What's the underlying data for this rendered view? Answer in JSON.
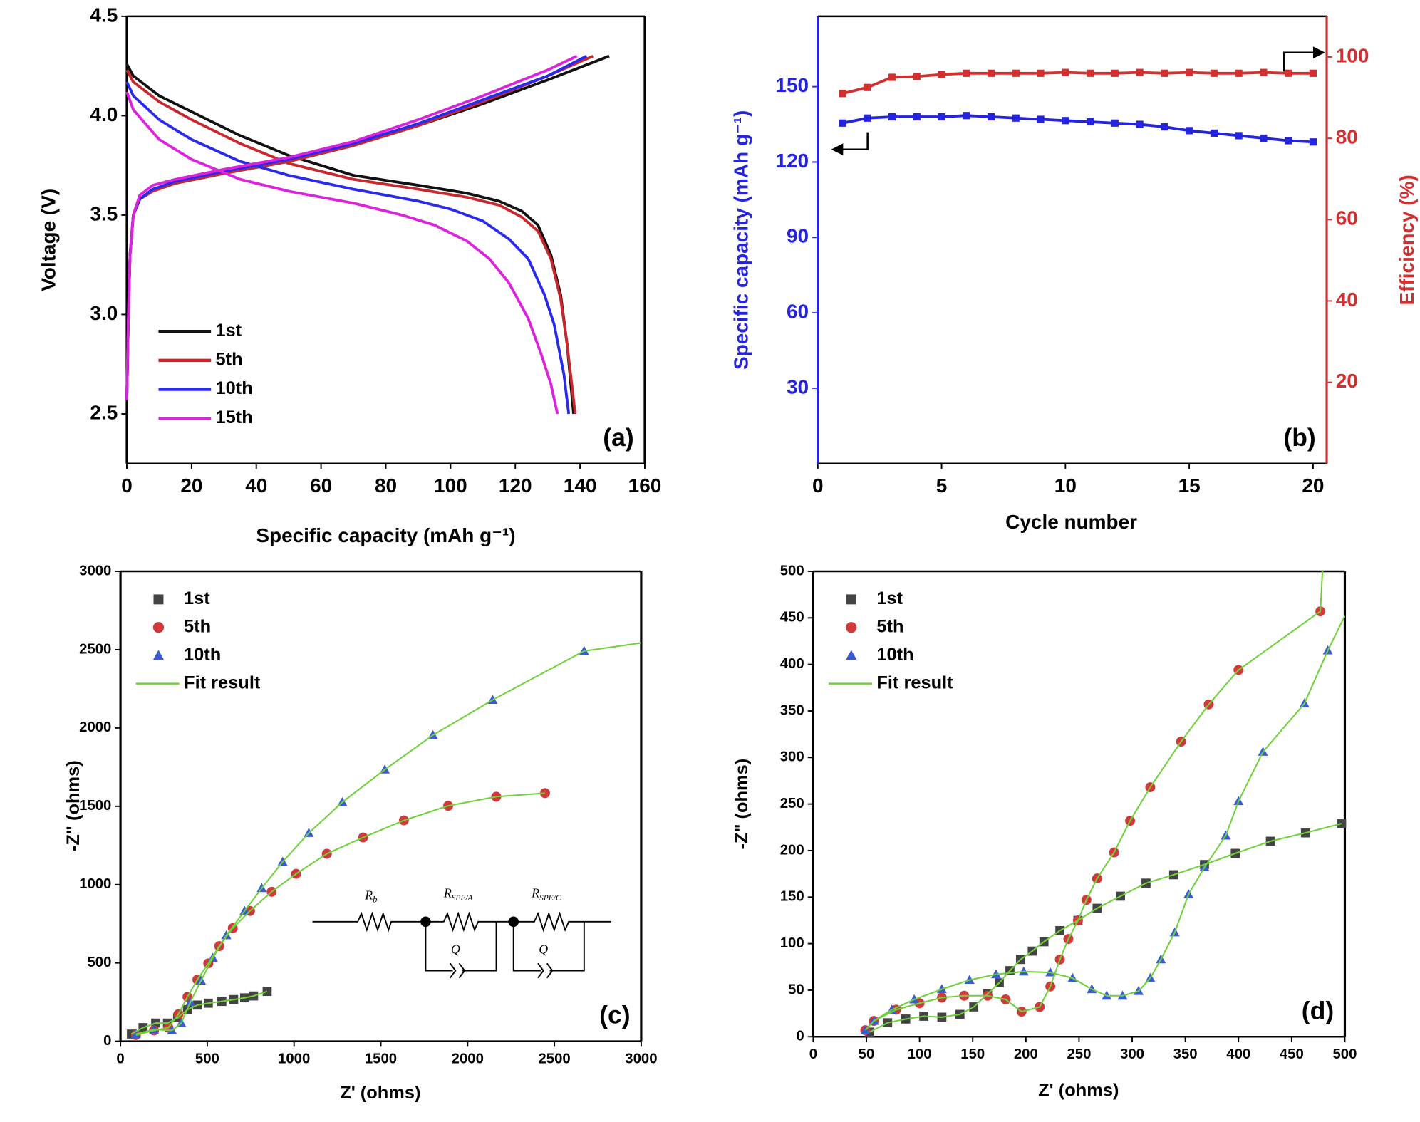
{
  "chart_data": [
    {
      "type": "line",
      "panel_label": "(a)",
      "xlabel": "Specific capacity (mAh g⁻¹)",
      "ylabel": "Voltage (V)",
      "xlim": [
        0,
        160
      ],
      "ylim": [
        2.25,
        4.5
      ],
      "xticks": [
        0,
        20,
        40,
        60,
        80,
        100,
        120,
        140,
        160
      ],
      "yticks": [
        2.5,
        {
          "value": 3,
          "label": "3.0"
        },
        3.5,
        {
          "value": 4,
          "label": "4.0"
        },
        4.5
      ],
      "legend": "lower left",
      "series": [
        {
          "name": "1st",
          "color": "#111111",
          "x": [
            0,
            0.5,
            1,
            2,
            4,
            8,
            15,
            30,
            50,
            70,
            90,
            110,
            130,
            149,
            null,
            0,
            2,
            10,
            20,
            35,
            50,
            70,
            90,
            105,
            115,
            122,
            127,
            131,
            134,
            136,
            138
          ],
          "values": [
            2.57,
            3.0,
            3.3,
            3.5,
            3.58,
            3.63,
            3.66,
            3.71,
            3.77,
            3.85,
            3.95,
            4.06,
            4.18,
            4.3,
            null,
            4.26,
            4.2,
            4.1,
            4.02,
            3.9,
            3.8,
            3.7,
            3.65,
            3.61,
            3.57,
            3.52,
            3.45,
            3.3,
            3.1,
            2.85,
            2.5
          ]
        },
        {
          "name": "5th",
          "color": "#c8272d",
          "x": [
            0,
            0.5,
            1,
            2,
            4,
            8,
            15,
            30,
            50,
            70,
            90,
            110,
            130,
            144,
            null,
            0,
            2,
            10,
            20,
            35,
            50,
            70,
            90,
            105,
            115,
            122,
            127,
            131,
            134,
            136,
            138.5
          ],
          "values": [
            2.57,
            3.0,
            3.3,
            3.5,
            3.58,
            3.62,
            3.66,
            3.71,
            3.77,
            3.85,
            3.95,
            4.07,
            4.2,
            4.3,
            null,
            4.23,
            4.17,
            4.07,
            3.98,
            3.86,
            3.76,
            3.68,
            3.63,
            3.59,
            3.55,
            3.49,
            3.42,
            3.28,
            3.08,
            2.85,
            2.5
          ]
        },
        {
          "name": "10th",
          "color": "#2a2aee",
          "x": [
            0,
            0.5,
            1,
            2,
            4,
            8,
            15,
            30,
            50,
            70,
            90,
            110,
            130,
            142,
            null,
            0,
            2,
            10,
            20,
            35,
            50,
            70,
            90,
            100,
            110,
            118,
            124,
            129,
            132,
            135,
            136.5
          ],
          "values": [
            2.57,
            3.0,
            3.3,
            3.5,
            3.58,
            3.63,
            3.67,
            3.72,
            3.78,
            3.86,
            3.96,
            4.08,
            4.2,
            4.3,
            null,
            4.17,
            4.1,
            3.98,
            3.88,
            3.77,
            3.7,
            3.63,
            3.57,
            3.53,
            3.47,
            3.38,
            3.28,
            3.1,
            2.95,
            2.7,
            2.5
          ]
        },
        {
          "name": "15th",
          "color": "#dd22dd",
          "x": [
            0,
            0.5,
            1,
            2,
            4,
            8,
            15,
            30,
            50,
            70,
            90,
            110,
            130,
            139,
            null,
            0,
            2,
            10,
            20,
            35,
            50,
            70,
            85,
            95,
            105,
            112,
            118,
            124,
            128,
            131,
            133
          ],
          "values": [
            2.57,
            3.0,
            3.3,
            3.5,
            3.6,
            3.65,
            3.68,
            3.73,
            3.79,
            3.87,
            3.98,
            4.1,
            4.23,
            4.3,
            null,
            4.12,
            4.03,
            3.88,
            3.78,
            3.68,
            3.62,
            3.56,
            3.5,
            3.45,
            3.37,
            3.28,
            3.16,
            2.98,
            2.8,
            2.65,
            2.5
          ]
        }
      ]
    },
    {
      "type": "line",
      "markers": "square",
      "panel_label": "(b)",
      "xlabel": "Cycle number",
      "ylabel": "Specific capacity (mAh g⁻¹)",
      "y2label": "Efficiency (%)",
      "x": [
        1,
        2,
        3,
        4,
        5,
        6,
        7,
        8,
        9,
        10,
        11,
        12,
        13,
        14,
        15,
        16,
        17,
        18,
        19,
        20
      ],
      "xlim": [
        0,
        20.55
      ],
      "ylim": [
        0,
        178
      ],
      "y2lim": [
        0,
        110
      ],
      "xticks": [
        0,
        5,
        10,
        15,
        20
      ],
      "yticks": [
        30,
        60,
        90,
        120,
        150
      ],
      "y2ticks": [
        20,
        40,
        60,
        80,
        100
      ],
      "series": [
        {
          "name": "Specific capacity",
          "color": "#2424e0",
          "axis": "y",
          "values": [
            135.5,
            137.5,
            138,
            138,
            138,
            138.5,
            138,
            137.5,
            137,
            136.5,
            136,
            135.5,
            135,
            134,
            132.5,
            131.5,
            130.5,
            129.5,
            128.5,
            128
          ]
        },
        {
          "name": "Efficiency",
          "color": "#d32f2f",
          "axis": "y2",
          "values": [
            91,
            92.5,
            95,
            95.2,
            95.7,
            96,
            96,
            96,
            96,
            96.2,
            96,
            96,
            96.2,
            96,
            96.2,
            96,
            96,
            96.2,
            96,
            96
          ]
        }
      ]
    },
    {
      "type": "scatter",
      "panel_label": "(c)",
      "xlabel": "Z' (ohms)",
      "ylabel": "-Z\" (ohms)",
      "xlim": [
        0,
        3000
      ],
      "ylim": [
        0,
        3000
      ],
      "xticks": [
        0,
        500,
        1000,
        1500,
        2000,
        2500,
        3000
      ],
      "yticks": [
        0,
        500,
        1000,
        1500,
        2000,
        2500,
        3000
      ],
      "legend": "upper left",
      "circuit_labels": [
        {
          "main": "R",
          "sub": "b"
        },
        {
          "main": "R",
          "sub": "SPE/A"
        },
        {
          "main": "R",
          "sub": "SPE/C"
        }
      ],
      "circuit_q": [
        "Q",
        "Q"
      ],
      "series": [
        {
          "name": "1st",
          "color": "#444444",
          "marker": "square",
          "x": [
            63,
            130,
            203,
            271,
            329,
            386,
            443,
            506,
            584,
            652,
            715,
            767,
            845
          ],
          "values": [
            46,
            87,
            116,
            116,
            150,
            202,
            231,
            243,
            254,
            266,
            277,
            289,
            318
          ]
        },
        {
          "name": "5th",
          "color": "#d03a3a",
          "marker": "circle",
          "x": [
            89,
            193,
            276,
            334,
            386,
            443,
            506,
            569,
            647,
            746,
            871,
            1012,
            1189,
            1398,
            1633,
            1888,
            2165,
            2446
          ],
          "values": [
            40,
            69,
            87,
            173,
            283,
            393,
            497,
            607,
            722,
            832,
            954,
            1069,
            1197,
            1301,
            1410,
            1503,
            1561,
            1584
          ]
        },
        {
          "name": "10th",
          "color": "#3b5bd6",
          "marker": "triangle",
          "x": [
            89,
            193,
            297,
            350,
            402,
            464,
            532,
            610,
            715,
            814,
            934,
            1085,
            1278,
            1523,
            1800,
            2144,
            2671
          ],
          "values": [
            46,
            75,
            69,
            116,
            249,
            387,
            532,
            676,
            832,
            977,
            1145,
            1329,
            1526,
            1734,
            1954,
            2179,
            2491
          ]
        },
        {
          "name": "Fit result",
          "color": "#6fd13a",
          "style": "line",
          "x": [
            63,
            130,
            203,
            271,
            329,
            386,
            443,
            506,
            584,
            652,
            715,
            767,
            845,
            null,
            89,
            193,
            276,
            334,
            386,
            443,
            506,
            569,
            647,
            746,
            871,
            1012,
            1189,
            1398,
            1633,
            1888,
            2165,
            2446,
            null,
            89,
            193,
            297,
            350,
            402,
            464,
            532,
            610,
            715,
            814,
            934,
            1085,
            1278,
            1523,
            1800,
            2144,
            2671,
            3000
          ],
          "values": [
            46,
            87,
            116,
            116,
            150,
            202,
            231,
            243,
            254,
            266,
            277,
            289,
            318,
            null,
            40,
            69,
            87,
            173,
            283,
            393,
            497,
            607,
            722,
            832,
            954,
            1069,
            1197,
            1301,
            1410,
            1503,
            1561,
            1584,
            null,
            46,
            75,
            69,
            116,
            249,
            387,
            532,
            676,
            832,
            977,
            1145,
            1329,
            1526,
            1734,
            1954,
            2179,
            2491,
            2543
          ]
        }
      ]
    },
    {
      "type": "scatter",
      "panel_label": "(d)",
      "xlabel": "Z' (ohms)",
      "ylabel": "-Z\" (ohms)",
      "xlim": [
        0,
        500
      ],
      "ylim": [
        0,
        500
      ],
      "xticks": [
        0,
        50,
        100,
        150,
        200,
        250,
        300,
        350,
        400,
        450,
        500
      ],
      "yticks": [
        0,
        50,
        100,
        150,
        200,
        250,
        300,
        350,
        400,
        450,
        500
      ],
      "legend": "upper left",
      "series": [
        {
          "name": "1st",
          "color": "#444444",
          "marker": "square",
          "x": [
            53,
            70,
            87,
            104,
            121,
            138,
            151,
            164,
            175,
            185,
            195,
            206,
            217,
            232,
            249,
            267,
            289,
            313,
            339,
            368,
            397,
            430,
            463,
            497
          ],
          "values": [
            5,
            15,
            19,
            22,
            21,
            24,
            32,
            46,
            58,
            71,
            83,
            92,
            102,
            114,
            125,
            138,
            151,
            165,
            174,
            185,
            197,
            210,
            219,
            229
          ]
        },
        {
          "name": "5th",
          "color": "#d03a3a",
          "marker": "circle",
          "x": [
            49,
            57,
            78,
            100,
            121,
            142,
            164,
            181,
            196,
            213,
            223,
            232,
            240,
            249,
            257,
            267,
            283,
            298,
            317,
            346,
            372,
            400,
            477
          ],
          "values": [
            7,
            17,
            29,
            36,
            42,
            44,
            44,
            40,
            27,
            32,
            54,
            83,
            105,
            125,
            147,
            170,
            198,
            232,
            268,
            317,
            357,
            394,
            457
          ]
        },
        {
          "name": "10th",
          "color": "#3b5bd6",
          "marker": "triangle",
          "x": [
            49,
            57,
            74,
            95,
            121,
            147,
            172,
            198,
            223,
            244,
            262,
            276,
            291,
            306,
            317,
            327,
            340,
            353,
            368,
            388,
            400,
            423,
            462,
            484
          ],
          "values": [
            7,
            17,
            29,
            40,
            51,
            61,
            67,
            70,
            69,
            63,
            51,
            44,
            44,
            49,
            63,
            83,
            112,
            153,
            182,
            216,
            253,
            306,
            358,
            415
          ]
        },
        {
          "name": "Fit result",
          "color": "#6fd13a",
          "style": "line",
          "x": [
            53,
            70,
            87,
            104,
            121,
            138,
            151,
            164,
            175,
            185,
            195,
            206,
            217,
            232,
            249,
            267,
            289,
            313,
            339,
            368,
            397,
            430,
            463,
            497,
            null,
            49,
            57,
            78,
            100,
            121,
            142,
            164,
            181,
            196,
            213,
            223,
            232,
            240,
            249,
            257,
            267,
            283,
            298,
            317,
            346,
            372,
            400,
            477,
            479,
            null,
            49,
            57,
            74,
            95,
            121,
            147,
            172,
            198,
            223,
            244,
            262,
            276,
            291,
            306,
            317,
            327,
            340,
            353,
            368,
            388,
            400,
            423,
            462,
            484,
            500
          ],
          "values": [
            5,
            15,
            19,
            22,
            21,
            24,
            32,
            46,
            58,
            71,
            83,
            92,
            102,
            114,
            125,
            138,
            151,
            165,
            174,
            185,
            197,
            210,
            219,
            229,
            null,
            7,
            17,
            29,
            36,
            42,
            44,
            44,
            40,
            27,
            32,
            54,
            83,
            105,
            125,
            147,
            170,
            198,
            232,
            268,
            317,
            357,
            394,
            457,
            500,
            null,
            7,
            17,
            29,
            40,
            51,
            61,
            67,
            70,
            69,
            63,
            51,
            44,
            44,
            49,
            63,
            83,
            112,
            153,
            182,
            216,
            253,
            306,
            358,
            415,
            452
          ]
        }
      ]
    }
  ]
}
